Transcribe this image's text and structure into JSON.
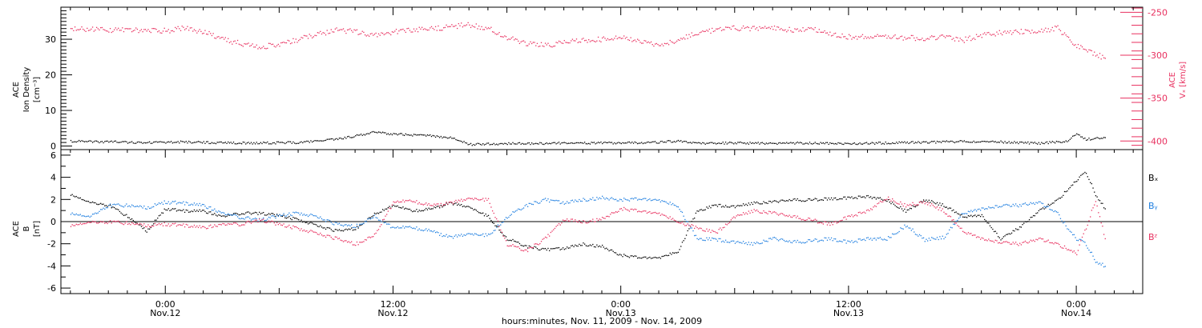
{
  "colors": {
    "black": "#000000",
    "speed": "#e8305f",
    "bx": "#000000",
    "by": "#1f7fe0",
    "bz": "#e8305f"
  },
  "footer": "hours:minutes, Nov. 11, 2009 - Nov. 14, 2009",
  "chart_data": [
    {
      "type": "scatter",
      "panel": "top",
      "ylabel_left": [
        "ACE",
        "Ion Density",
        "[cm⁻³]"
      ],
      "ylabel_right": [
        "ACE",
        "Vₓ [km/s]"
      ],
      "y_left_ticks": [
        0,
        10,
        20,
        30
      ],
      "y_left_lim": [
        -1,
        39
      ],
      "y_right_ticks": [
        -250,
        -300,
        -350,
        -400
      ],
      "y_right_lim": [
        -410,
        -244
      ],
      "x_hours_lim": [
        -5.5,
        51.5
      ],
      "series": [
        {
          "axis": "left",
          "color": "black",
          "points": [
            [
              -5,
              1.5
            ],
            [
              -3,
              1.3
            ],
            [
              -1,
              1.1
            ],
            [
              1,
              1.3
            ],
            [
              3,
              1.0
            ],
            [
              5,
              1.0
            ],
            [
              7,
              1.1
            ],
            [
              9,
              2.0
            ],
            [
              10,
              3.0
            ],
            [
              11,
              4.0
            ],
            [
              12,
              3.5
            ],
            [
              14,
              3.0
            ],
            [
              15,
              2.5
            ],
            [
              16,
              0.6
            ],
            [
              18,
              0.8
            ],
            [
              20,
              0.9
            ],
            [
              22,
              1.0
            ],
            [
              24,
              1.0
            ],
            [
              26,
              1.2
            ],
            [
              27,
              1.6
            ],
            [
              28,
              0.8
            ],
            [
              30,
              1.0
            ],
            [
              32,
              0.9
            ],
            [
              34,
              1.0
            ],
            [
              36,
              0.8
            ],
            [
              38,
              1.0
            ],
            [
              40,
              1.2
            ],
            [
              42,
              1.4
            ],
            [
              44,
              1.3
            ],
            [
              46,
              0.9
            ],
            [
              47.5,
              1.5
            ],
            [
              48,
              3.5
            ],
            [
              48.5,
              2.0
            ],
            [
              49.5,
              2.5
            ]
          ]
        },
        {
          "axis": "right",
          "color": "speed",
          "points": [
            [
              -5,
              -269
            ],
            [
              -3,
              -270
            ],
            [
              -1,
              -270
            ],
            [
              0,
              -271
            ],
            [
              1,
              -268
            ],
            [
              2,
              -272
            ],
            [
              3,
              -281
            ],
            [
              4,
              -286
            ],
            [
              5,
              -290
            ],
            [
              6,
              -286
            ],
            [
              7,
              -281
            ],
            [
              8,
              -275
            ],
            [
              9,
              -270
            ],
            [
              10,
              -272
            ],
            [
              11,
              -276
            ],
            [
              12,
              -272
            ],
            [
              13,
              -270
            ],
            [
              14,
              -269
            ],
            [
              15,
              -266
            ],
            [
              16,
              -264
            ],
            [
              17,
              -268
            ],
            [
              18,
              -279
            ],
            [
              19,
              -286
            ],
            [
              20,
              -288
            ],
            [
              21,
              -285
            ],
            [
              22,
              -282
            ],
            [
              23,
              -281
            ],
            [
              24,
              -279
            ],
            [
              25,
              -283
            ],
            [
              26,
              -287
            ],
            [
              27,
              -282
            ],
            [
              28,
              -273
            ],
            [
              29,
              -270
            ],
            [
              30,
              -268
            ],
            [
              31,
              -268
            ],
            [
              32,
              -268
            ],
            [
              33,
              -270
            ],
            [
              34,
              -268
            ],
            [
              35,
              -275
            ],
            [
              36,
              -278
            ],
            [
              37,
              -278
            ],
            [
              38,
              -277
            ],
            [
              39,
              -279
            ],
            [
              40,
              -280
            ],
            [
              41,
              -278
            ],
            [
              42,
              -282
            ],
            [
              43,
              -276
            ],
            [
              44,
              -273
            ],
            [
              45,
              -272
            ],
            [
              46,
              -271
            ],
            [
              47,
              -268
            ],
            [
              48,
              -288
            ],
            [
              49,
              -298
            ],
            [
              49.5,
              -303
            ]
          ]
        }
      ]
    },
    {
      "type": "scatter",
      "panel": "bottom",
      "ylabel_left": [
        "ACE",
        "B",
        "[nT]"
      ],
      "y_ticks": [
        6,
        4,
        2,
        0,
        -2,
        -4,
        -6
      ],
      "ylim": [
        -6.5,
        6.5
      ],
      "legend": [
        "Bₓ",
        "Bᵧ",
        "Bᶻ"
      ],
      "legend_position": "right",
      "series": [
        {
          "name": "Bₓ",
          "color": "bx",
          "points": [
            [
              -5,
              2.5
            ],
            [
              -4,
              1.8
            ],
            [
              -3,
              1.5
            ],
            [
              -2,
              0.5
            ],
            [
              -1,
              -0.8
            ],
            [
              0,
              1.2
            ],
            [
              1,
              1.0
            ],
            [
              2,
              1.0
            ],
            [
              3,
              0.5
            ],
            [
              4,
              0.8
            ],
            [
              5,
              0.8
            ],
            [
              6,
              0.6
            ],
            [
              7,
              0.2
            ],
            [
              8,
              -0.3
            ],
            [
              9,
              -0.8
            ],
            [
              10,
              -0.6
            ],
            [
              11,
              0.7
            ],
            [
              12,
              1.5
            ],
            [
              13,
              1.0
            ],
            [
              14,
              1.2
            ],
            [
              15,
              1.7
            ],
            [
              16,
              1.4
            ],
            [
              17,
              0.5
            ],
            [
              18,
              -1.5
            ],
            [
              19,
              -2.2
            ],
            [
              20,
              -2.5
            ],
            [
              21,
              -2.4
            ],
            [
              22,
              -2.0
            ],
            [
              23,
              -2.2
            ],
            [
              24,
              -3.0
            ],
            [
              25,
              -3.2
            ],
            [
              26,
              -3.2
            ],
            [
              27,
              -2.7
            ],
            [
              28,
              1.0
            ],
            [
              29,
              1.5
            ],
            [
              30,
              1.4
            ],
            [
              31,
              1.7
            ],
            [
              32,
              1.8
            ],
            [
              33,
              2.0
            ],
            [
              34,
              2.0
            ],
            [
              35,
              2.1
            ],
            [
              36,
              2.2
            ],
            [
              37,
              2.3
            ],
            [
              38,
              2.0
            ],
            [
              39,
              1.0
            ],
            [
              40,
              2.0
            ],
            [
              41,
              1.5
            ],
            [
              42,
              0.5
            ],
            [
              43,
              0.6
            ],
            [
              44,
              -1.5
            ],
            [
              45,
              -0.5
            ],
            [
              46,
              1.0
            ],
            [
              47,
              2.0
            ],
            [
              48,
              3.8
            ],
            [
              48.5,
              4.5
            ],
            [
              49,
              2.5
            ],
            [
              49.5,
              1.2
            ]
          ]
        },
        {
          "name": "Bᵧ",
          "color": "by",
          "points": [
            [
              -5,
              0.8
            ],
            [
              -4,
              0.5
            ],
            [
              -3,
              1.5
            ],
            [
              -2,
              1.5
            ],
            [
              -1,
              1.3
            ],
            [
              0,
              1.8
            ],
            [
              1,
              1.7
            ],
            [
              2,
              1.5
            ],
            [
              3,
              0.8
            ],
            [
              4,
              0.4
            ],
            [
              5,
              0.2
            ],
            [
              6,
              0.6
            ],
            [
              7,
              0.8
            ],
            [
              8,
              0.5
            ],
            [
              9,
              -0.2
            ],
            [
              10,
              -0.4
            ],
            [
              11,
              0.5
            ],
            [
              12,
              -0.5
            ],
            [
              13,
              -0.5
            ],
            [
              14,
              -0.8
            ],
            [
              15,
              -1.4
            ],
            [
              16,
              -1.0
            ],
            [
              17,
              -1.2
            ],
            [
              18,
              0.5
            ],
            [
              19,
              1.5
            ],
            [
              20,
              2.0
            ],
            [
              21,
              1.7
            ],
            [
              22,
              2.0
            ],
            [
              23,
              2.2
            ],
            [
              24,
              2.0
            ],
            [
              25,
              2.1
            ],
            [
              26,
              2.0
            ],
            [
              27,
              1.4
            ],
            [
              28,
              -1.5
            ],
            [
              29,
              -1.6
            ],
            [
              30,
              -1.8
            ],
            [
              31,
              -2.0
            ],
            [
              32,
              -1.5
            ],
            [
              33,
              -1.8
            ],
            [
              34,
              -1.7
            ],
            [
              35,
              -1.5
            ],
            [
              36,
              -1.8
            ],
            [
              37,
              -1.5
            ],
            [
              38,
              -1.5
            ],
            [
              39,
              -0.3
            ],
            [
              40,
              -1.6
            ],
            [
              41,
              -1.4
            ],
            [
              42,
              0.8
            ],
            [
              43,
              1.2
            ],
            [
              44,
              1.5
            ],
            [
              45,
              1.5
            ],
            [
              46,
              1.8
            ],
            [
              47,
              0.8
            ],
            [
              47.5,
              -0.5
            ],
            [
              48,
              -1.5
            ],
            [
              48.5,
              -2.0
            ],
            [
              49,
              -3.5
            ],
            [
              49.5,
              -4.0
            ]
          ]
        },
        {
          "name": "Bᶻ",
          "color": "bz",
          "points": [
            [
              -5,
              -0.3
            ],
            [
              -4,
              0.0
            ],
            [
              -3,
              0.0
            ],
            [
              -2,
              -0.1
            ],
            [
              -1,
              -0.3
            ],
            [
              0,
              -0.2
            ],
            [
              1,
              -0.3
            ],
            [
              2,
              -0.5
            ],
            [
              3,
              -0.2
            ],
            [
              4,
              -0.2
            ],
            [
              5,
              0.2
            ],
            [
              6,
              -0.2
            ],
            [
              7,
              -0.6
            ],
            [
              8,
              -1.0
            ],
            [
              9,
              -1.5
            ],
            [
              10,
              -2.0
            ],
            [
              11,
              -1.2
            ],
            [
              12,
              1.8
            ],
            [
              13,
              1.9
            ],
            [
              14,
              1.5
            ],
            [
              15,
              1.7
            ],
            [
              16,
              2.2
            ],
            [
              17,
              2.0
            ],
            [
              18,
              -2.0
            ],
            [
              19,
              -2.6
            ],
            [
              20,
              -1.5
            ],
            [
              21,
              0.2
            ],
            [
              22,
              0.0
            ],
            [
              23,
              0.3
            ],
            [
              24,
              1.2
            ],
            [
              25,
              1.0
            ],
            [
              26,
              0.8
            ],
            [
              27,
              0.0
            ],
            [
              28,
              -0.5
            ],
            [
              29,
              -1.0
            ],
            [
              30,
              0.5
            ],
            [
              31,
              1.0
            ],
            [
              32,
              0.8
            ],
            [
              33,
              0.5
            ],
            [
              34,
              0.2
            ],
            [
              35,
              -0.2
            ],
            [
              36,
              0.5
            ],
            [
              37,
              1.0
            ],
            [
              38,
              2.2
            ],
            [
              39,
              1.5
            ],
            [
              40,
              1.8
            ],
            [
              41,
              1.0
            ],
            [
              42,
              -0.8
            ],
            [
              43,
              -1.5
            ],
            [
              44,
              -1.8
            ],
            [
              45,
              -2.0
            ],
            [
              46,
              -1.5
            ],
            [
              47,
              -2.0
            ],
            [
              48,
              -2.8
            ],
            [
              48.5,
              -0.5
            ],
            [
              49,
              2.0
            ],
            [
              49.5,
              -1.5
            ]
          ]
        }
      ]
    }
  ],
  "x_axis": {
    "major": [
      {
        "h": 0,
        "time": "0:00",
        "date": "Nov.12"
      },
      {
        "h": 12,
        "time": "12:00",
        "date": "Nov.12"
      },
      {
        "h": 24,
        "time": "0:00",
        "date": "Nov.13"
      },
      {
        "h": 36,
        "time": "12:00",
        "date": "Nov.13"
      },
      {
        "h": 48,
        "time": "0:00",
        "date": "Nov.14"
      }
    ]
  }
}
